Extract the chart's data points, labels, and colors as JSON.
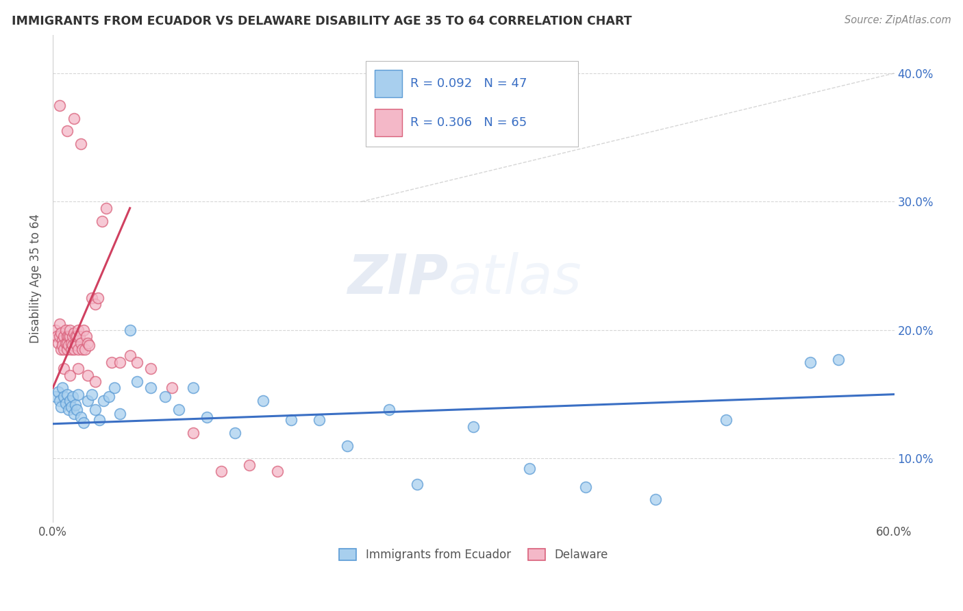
{
  "title": "IMMIGRANTS FROM ECUADOR VS DELAWARE DISABILITY AGE 35 TO 64 CORRELATION CHART",
  "source": "Source: ZipAtlas.com",
  "ylabel": "Disability Age 35 to 64",
  "xlim": [
    0.0,
    0.6
  ],
  "ylim": [
    0.05,
    0.43
  ],
  "ytick_positions": [
    0.1,
    0.2,
    0.3,
    0.4
  ],
  "ytick_labels": [
    "10.0%",
    "20.0%",
    "30.0%",
    "40.0%"
  ],
  "xtick_positions": [
    0.0,
    0.1,
    0.2,
    0.3,
    0.4,
    0.5,
    0.6
  ],
  "xtick_labels": [
    "0.0%",
    "",
    "",
    "",
    "",
    "",
    "60.0%"
  ],
  "legend_label1": "Immigrants from Ecuador",
  "legend_label2": "Delaware",
  "color_blue_fill": "#A8CFEE",
  "color_blue_edge": "#5B9BD5",
  "color_pink_fill": "#F4B8C8",
  "color_pink_edge": "#D9607A",
  "color_blue_line": "#3A6FC4",
  "color_pink_line": "#D04060",
  "color_dashed": "#BBBBBB",
  "watermark_zip": "ZIP",
  "watermark_atlas": "atlas",
  "blue_x": [
    0.002,
    0.004,
    0.005,
    0.006,
    0.007,
    0.008,
    0.009,
    0.01,
    0.011,
    0.012,
    0.013,
    0.014,
    0.015,
    0.016,
    0.017,
    0.018,
    0.02,
    0.022,
    0.025,
    0.028,
    0.03,
    0.033,
    0.036,
    0.04,
    0.044,
    0.048,
    0.055,
    0.06,
    0.07,
    0.08,
    0.09,
    0.1,
    0.11,
    0.13,
    0.15,
    0.17,
    0.19,
    0.21,
    0.24,
    0.26,
    0.3,
    0.34,
    0.38,
    0.43,
    0.48,
    0.54,
    0.56
  ],
  "blue_y": [
    0.148,
    0.152,
    0.145,
    0.14,
    0.155,
    0.148,
    0.143,
    0.15,
    0.138,
    0.145,
    0.14,
    0.148,
    0.135,
    0.142,
    0.138,
    0.15,
    0.132,
    0.128,
    0.145,
    0.15,
    0.138,
    0.13,
    0.145,
    0.148,
    0.155,
    0.135,
    0.2,
    0.16,
    0.155,
    0.148,
    0.138,
    0.155,
    0.132,
    0.12,
    0.145,
    0.13,
    0.13,
    0.11,
    0.138,
    0.08,
    0.125,
    0.092,
    0.078,
    0.068,
    0.13,
    0.175,
    0.177
  ],
  "pink_x": [
    0.002,
    0.003,
    0.004,
    0.005,
    0.005,
    0.006,
    0.006,
    0.007,
    0.007,
    0.008,
    0.008,
    0.009,
    0.009,
    0.01,
    0.01,
    0.01,
    0.011,
    0.011,
    0.012,
    0.012,
    0.013,
    0.013,
    0.014,
    0.014,
    0.015,
    0.015,
    0.016,
    0.016,
    0.017,
    0.017,
    0.018,
    0.018,
    0.019,
    0.02,
    0.021,
    0.022,
    0.023,
    0.024,
    0.025,
    0.026,
    0.028,
    0.03,
    0.032,
    0.035,
    0.038,
    0.042,
    0.048,
    0.055,
    0.06,
    0.07,
    0.085,
    0.1,
    0.12,
    0.14,
    0.16,
    0.005,
    0.01,
    0.015,
    0.02,
    0.008,
    0.012,
    0.018,
    0.025,
    0.03
  ],
  "pink_y": [
    0.2,
    0.195,
    0.19,
    0.205,
    0.195,
    0.198,
    0.185,
    0.192,
    0.188,
    0.195,
    0.185,
    0.19,
    0.2,
    0.195,
    0.185,
    0.19,
    0.195,
    0.188,
    0.195,
    0.2,
    0.185,
    0.19,
    0.195,
    0.188,
    0.198,
    0.185,
    0.195,
    0.19,
    0.188,
    0.195,
    0.2,
    0.185,
    0.195,
    0.19,
    0.185,
    0.2,
    0.185,
    0.195,
    0.19,
    0.188,
    0.225,
    0.22,
    0.225,
    0.285,
    0.295,
    0.175,
    0.175,
    0.18,
    0.175,
    0.17,
    0.155,
    0.12,
    0.09,
    0.095,
    0.09,
    0.375,
    0.355,
    0.365,
    0.345,
    0.17,
    0.165,
    0.17,
    0.165,
    0.16
  ],
  "blue_trend_x": [
    0.0,
    0.6
  ],
  "blue_trend_y": [
    0.127,
    0.15
  ],
  "pink_trend_x": [
    0.0,
    0.055
  ],
  "pink_trend_y": [
    0.155,
    0.295
  ]
}
